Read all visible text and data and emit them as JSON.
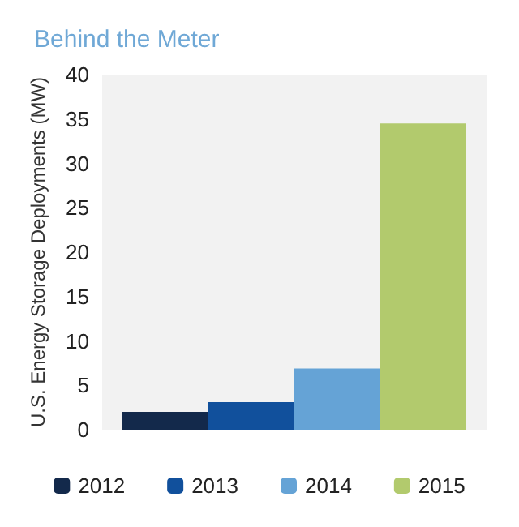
{
  "chart_data": {
    "type": "bar",
    "title": "Behind the Meter",
    "ylabel": "U.S. Energy Storage Deployments (MW)",
    "categories": [
      null
    ],
    "series": [
      {
        "name": "2012",
        "color": "#13294b",
        "values": [
          2.0
        ]
      },
      {
        "name": "2013",
        "color": "#11509c",
        "values": [
          3.1
        ]
      },
      {
        "name": "2014",
        "color": "#65a3d6",
        "values": [
          6.9
        ]
      },
      {
        "name": "2015",
        "color": "#b2ca6d",
        "values": [
          34.5
        ]
      }
    ],
    "ylim": [
      0,
      40
    ],
    "yticks": [
      0,
      5,
      10,
      15,
      20,
      25,
      30,
      35,
      40
    ],
    "grid": false,
    "legend": "bottom"
  }
}
